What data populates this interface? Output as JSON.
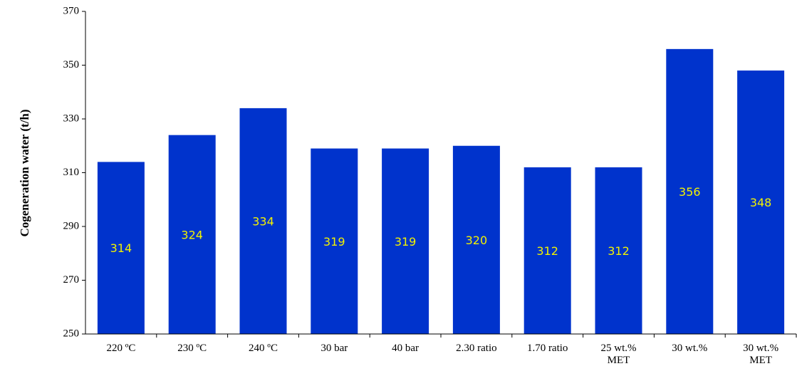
{
  "chart_data": {
    "type": "bar",
    "title": "",
    "xlabel": "",
    "ylabel": "Cogeneration water (t/h)",
    "ylim": [
      250,
      370
    ],
    "yticks": [
      250,
      270,
      290,
      310,
      330,
      350,
      370
    ],
    "grid": false,
    "categories": [
      [
        "220 ºC"
      ],
      [
        "230 ºC"
      ],
      [
        "240 ºC"
      ],
      [
        "30 bar"
      ],
      [
        "40 bar"
      ],
      [
        "2.30 ratio"
      ],
      [
        "1.70 ratio"
      ],
      [
        "25 wt.%",
        "MET"
      ],
      [
        "30 wt.%"
      ],
      [
        "30 wt.%",
        "MET"
      ]
    ],
    "values": [
      314,
      324,
      334,
      319,
      319,
      320,
      312,
      312,
      356,
      348
    ],
    "data_labels": [
      "314",
      "324",
      "334",
      "319",
      "319",
      "320",
      "312",
      "312",
      "356",
      "348"
    ],
    "bar_color": "#0033cc",
    "label_color": "#f2f200"
  }
}
